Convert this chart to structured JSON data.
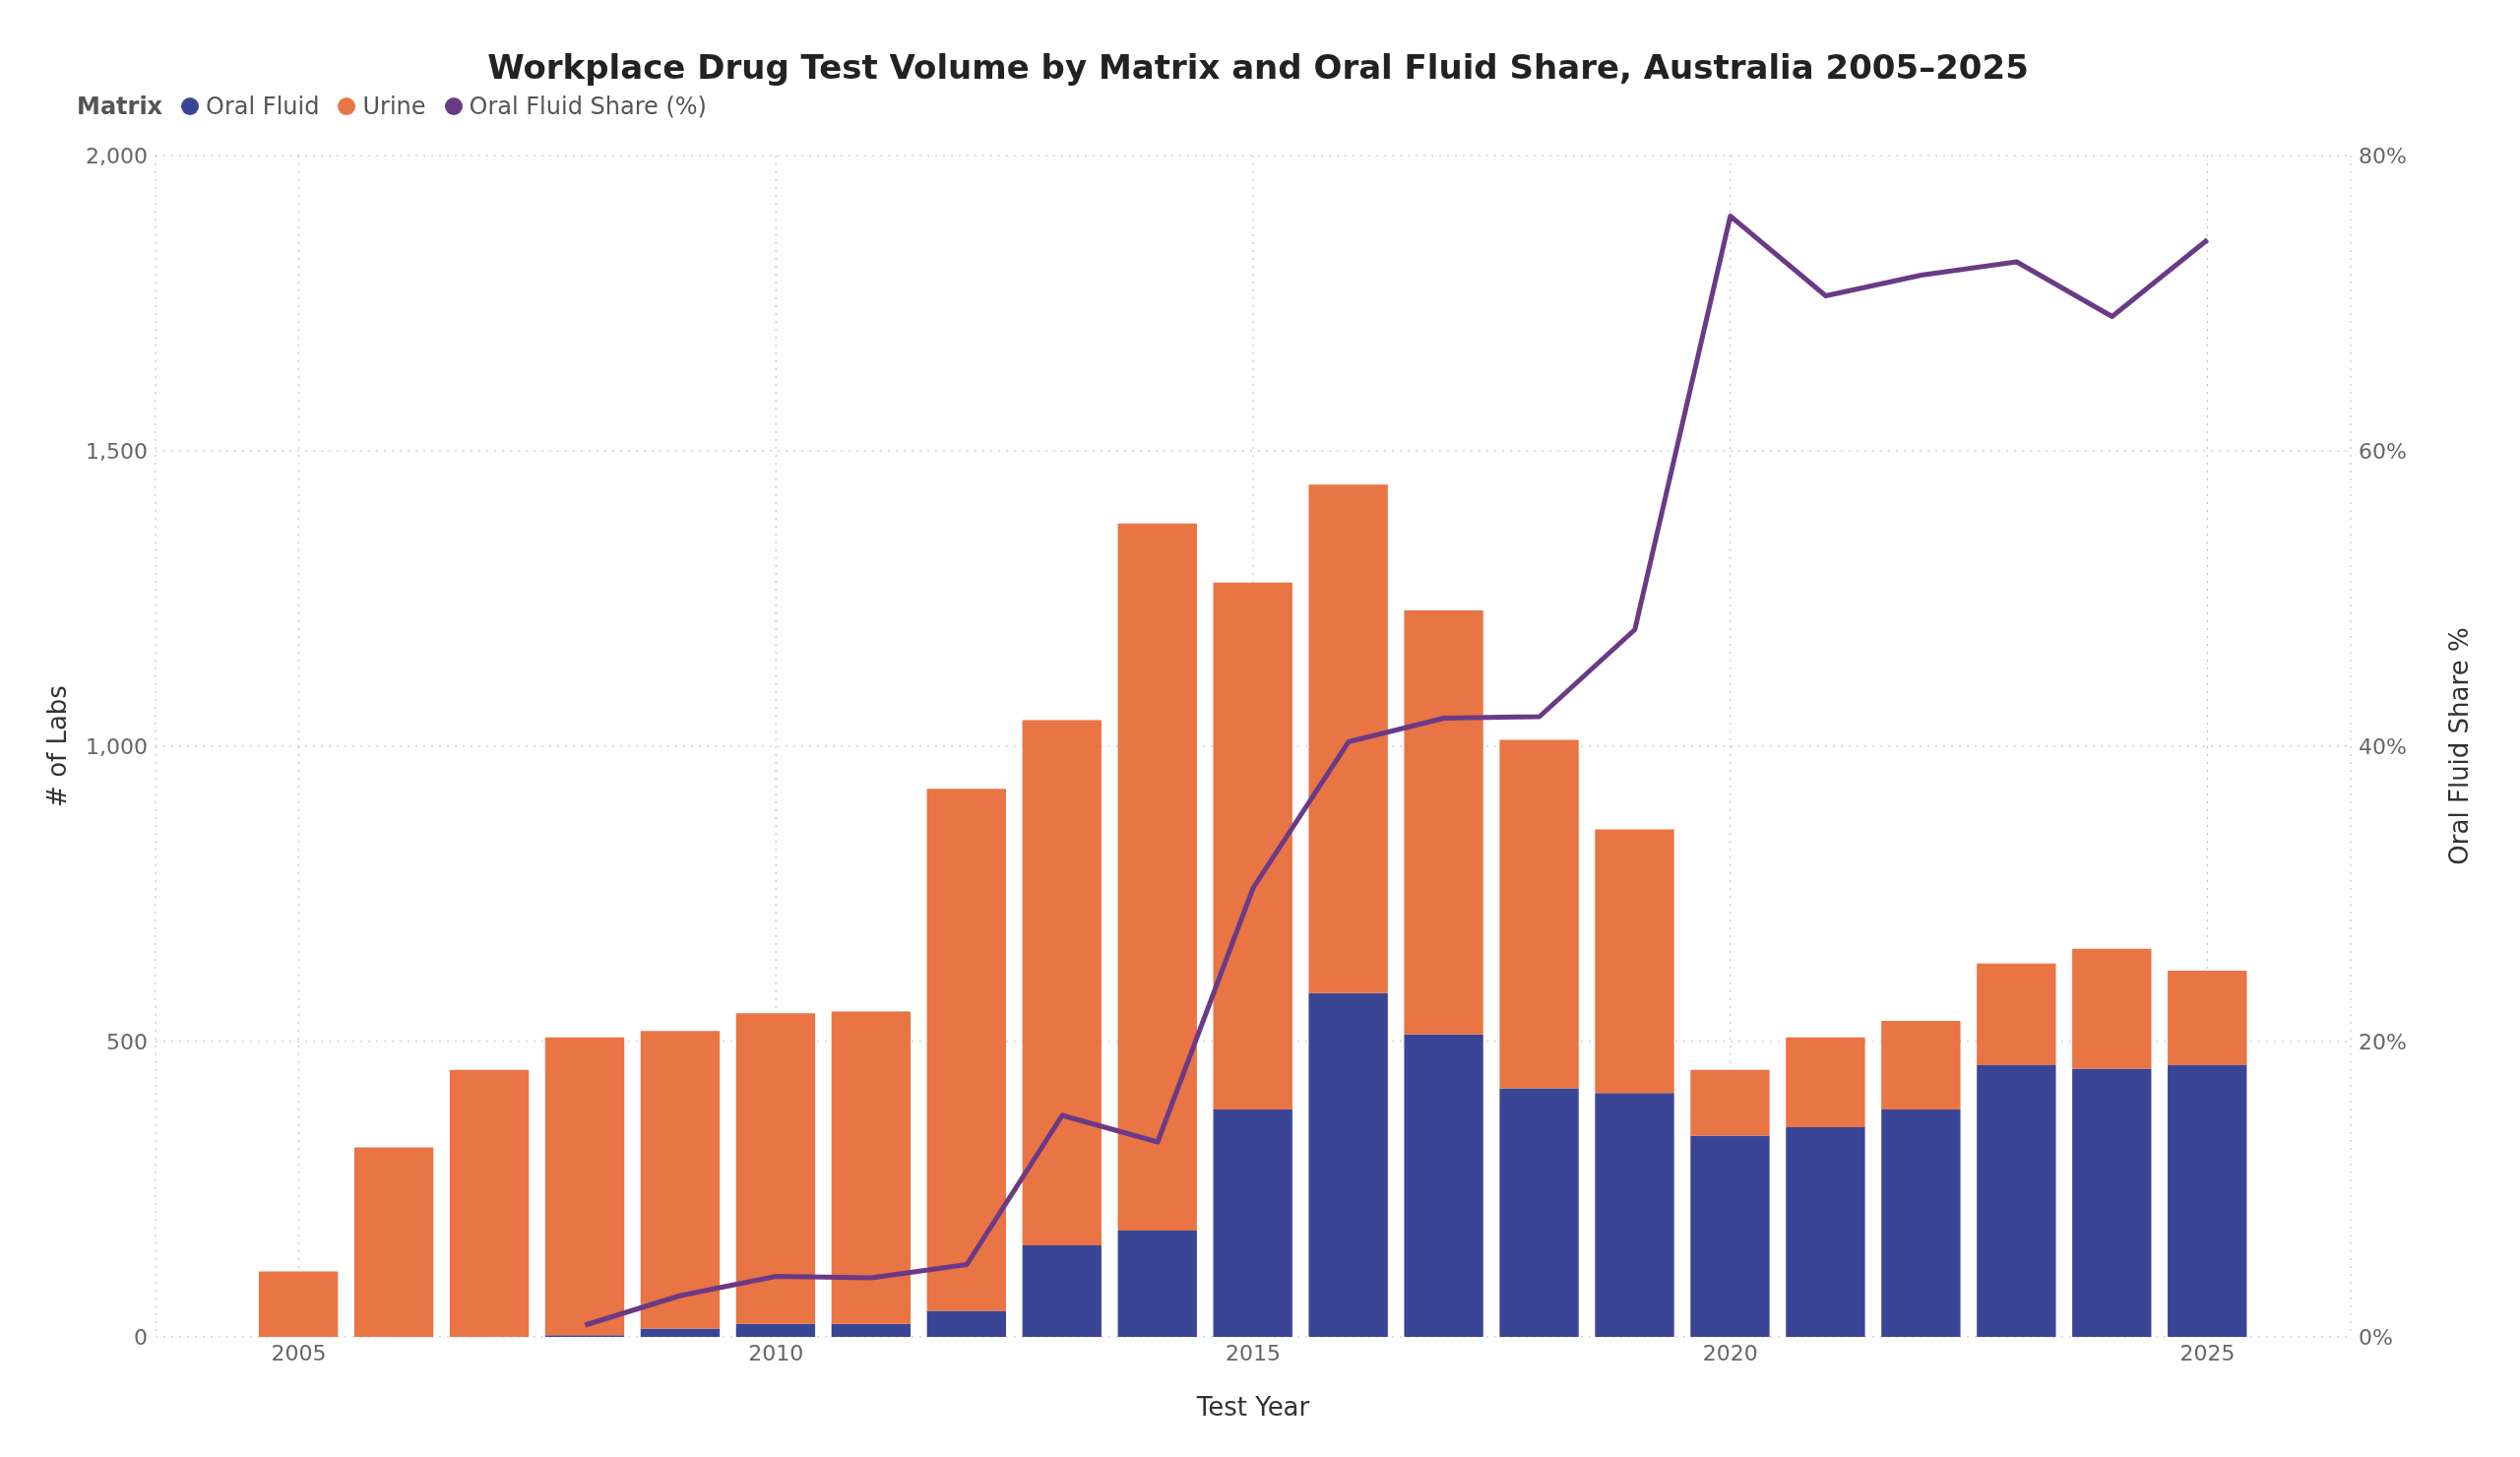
{
  "chart_data": {
    "type": "bar",
    "title": "Workplace Drug Test Volume by Matrix and Oral Fluid Share, Australia 2005–2025",
    "xlabel": "Test Year",
    "ylabel": "# of Labs",
    "y2label": "Oral Fluid Share %",
    "legend_title": "Matrix",
    "x": [
      2005,
      2006,
      2007,
      2008,
      2009,
      2010,
      2011,
      2012,
      2013,
      2014,
      2015,
      2016,
      2017,
      2018,
      2019,
      2020,
      2021,
      2022,
      2023,
      2024,
      2025
    ],
    "series": [
      {
        "name": "Oral Fluid",
        "color": "#3b4596",
        "values": [
          0,
          0,
          0,
          3,
          14,
          22,
          22,
          44,
          155,
          180,
          385,
          582,
          512,
          421,
          413,
          341,
          355,
          385,
          460,
          454,
          460
        ]
      },
      {
        "name": "Urine",
        "color": "#e97444",
        "values": [
          111,
          321,
          452,
          504,
          504,
          526,
          529,
          884,
          889,
          1197,
          892,
          861,
          718,
          590,
          446,
          111,
          152,
          150,
          172,
          203,
          160
        ]
      },
      {
        "name": "Oral Fluid Share (%)",
        "type": "line",
        "axis": "y2",
        "color": "#6b3a87",
        "values": [
          null,
          null,
          null,
          0.8,
          2.8,
          4.1,
          4.0,
          4.9,
          15,
          13.2,
          30.4,
          40.3,
          41.9,
          42.0,
          47.9,
          75.9,
          70.5,
          71.9,
          72.8,
          69.1,
          74.3
        ]
      }
    ],
    "stacked": true,
    "xlim": [
      2003.5,
      2026.5
    ],
    "xticks": [
      2005,
      2010,
      2015,
      2020,
      2025
    ],
    "ylim": [
      0,
      2000
    ],
    "yticks": [
      0,
      500,
      {
        "value": 1000,
        "label": "1,000"
      },
      {
        "value": 1500,
        "label": "1,500"
      },
      {
        "value": 2000,
        "label": "2,000"
      }
    ],
    "y2lim": [
      0,
      80
    ],
    "y2ticks": [
      {
        "value": 0,
        "label": "0%"
      },
      {
        "value": 20,
        "label": "20%"
      },
      {
        "value": 40,
        "label": "40%"
      },
      {
        "value": 60,
        "label": "60%"
      },
      {
        "value": 80,
        "label": "80%"
      }
    ],
    "grid": true,
    "legend": "top left",
    "marker": "none",
    "line_style": "solid"
  }
}
